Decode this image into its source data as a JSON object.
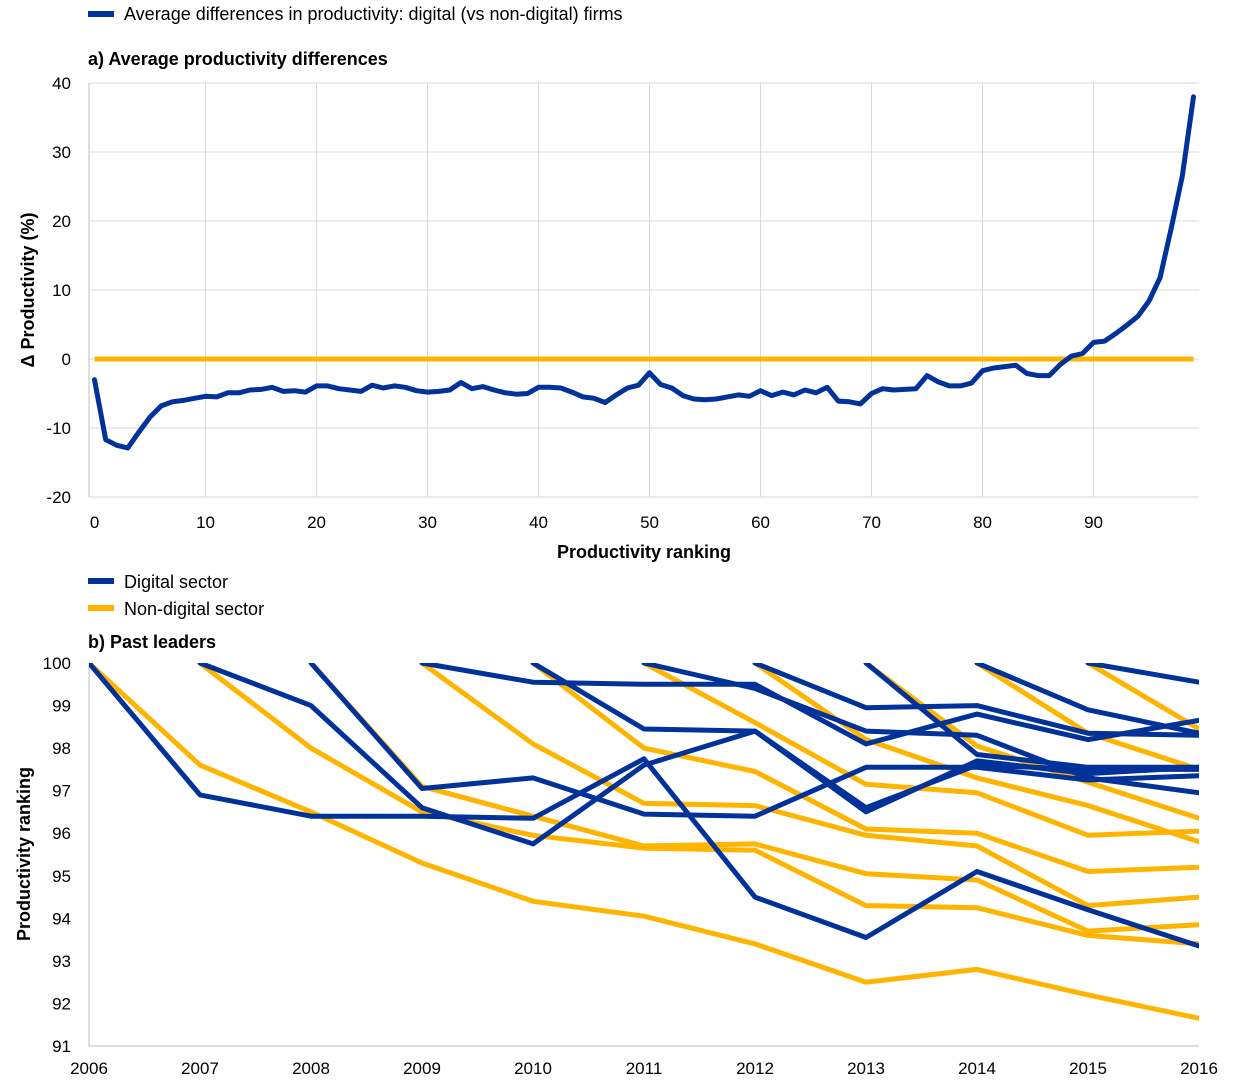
{
  "colors": {
    "digital": "#003299",
    "non_digital": "#FFB400",
    "grid": "#d9d9d9",
    "axis": "#bfbfbf"
  },
  "chart_data": [
    {
      "id": "a",
      "type": "line",
      "title": "a) Average productivity differences",
      "xlabel": "Productivity ranking",
      "ylabel": "Δ Productivity (%)",
      "xlim": [
        0,
        99
      ],
      "ylim": [
        -20,
        40
      ],
      "xticks": [
        0,
        10,
        20,
        30,
        40,
        50,
        60,
        70,
        80,
        90
      ],
      "yticks": [
        -20,
        -10,
        0,
        10,
        20,
        30,
        40
      ],
      "grid": true,
      "legend_position": "top-left",
      "legend": [
        {
          "label": "Average differences in productivity: digital (vs non-digital) firms",
          "color": "#003299"
        }
      ],
      "reference_line": {
        "y": 0,
        "color": "#FFB400"
      },
      "series": [
        {
          "name": "Average differences in productivity: digital (vs non-digital) firms",
          "color": "#003299",
          "x": [
            0,
            1,
            2,
            3,
            4,
            5,
            6,
            7,
            8,
            9,
            10,
            11,
            12,
            13,
            14,
            15,
            16,
            17,
            18,
            19,
            20,
            21,
            22,
            23,
            24,
            25,
            26,
            27,
            28,
            29,
            30,
            31,
            32,
            33,
            34,
            35,
            36,
            37,
            38,
            39,
            40,
            41,
            42,
            43,
            44,
            45,
            46,
            47,
            48,
            49,
            50,
            51,
            52,
            53,
            54,
            55,
            56,
            57,
            58,
            59,
            60,
            61,
            62,
            63,
            64,
            65,
            66,
            67,
            68,
            69,
            70,
            71,
            72,
            73,
            74,
            75,
            76,
            77,
            78,
            79,
            80,
            81,
            82,
            83,
            84,
            85,
            86,
            87,
            88,
            89,
            90,
            91,
            92,
            93,
            94,
            95,
            96,
            97,
            98,
            99
          ],
          "values": [
            -3,
            -11.7,
            -12.5,
            -12.9,
            -10.6,
            -8.4,
            -6.8,
            -6.2,
            -6,
            -5.7,
            -5.4,
            -5.5,
            -4.9,
            -4.9,
            -4.5,
            -4.4,
            -4.1,
            -4.7,
            -4.6,
            -4.8,
            -3.9,
            -3.9,
            -4.3,
            -4.5,
            -4.7,
            -3.8,
            -4.2,
            -3.9,
            -4.1,
            -4.6,
            -4.8,
            -4.7,
            -4.5,
            -3.4,
            -4.3,
            -4,
            -4.5,
            -4.9,
            -5.1,
            -5,
            -4.1,
            -4.1,
            -4.2,
            -4.8,
            -5.5,
            -5.7,
            -6.3,
            -5.2,
            -4.2,
            -3.8,
            -2,
            -3.7,
            -4.2,
            -5.3,
            -5.8,
            -5.9,
            -5.8,
            -5.5,
            -5.2,
            -5.4,
            -4.6,
            -5.3,
            -4.8,
            -5.2,
            -4.5,
            -4.9,
            -4.1,
            -6.1,
            -6.2,
            -6.5,
            -5,
            -4.3,
            -4.5,
            -4.4,
            -4.3,
            -2.4,
            -3.3,
            -3.9,
            -3.9,
            -3.5,
            -1.7,
            -1.3,
            -1.1,
            -0.9,
            -2.1,
            -2.4,
            -2.4,
            -0.8,
            0.4,
            0.8,
            2.4,
            2.6,
            3.7,
            4.9,
            6.2,
            8.4,
            11.8,
            19,
            26.5,
            38
          ]
        }
      ]
    },
    {
      "id": "b",
      "type": "line",
      "title": "b) Past leaders",
      "xlabel": "",
      "ylabel": "Productivity ranking",
      "xlim": [
        2006,
        2016
      ],
      "ylim": [
        91,
        100
      ],
      "xticks": [
        2006,
        2007,
        2008,
        2009,
        2010,
        2011,
        2012,
        2013,
        2014,
        2015,
        2016
      ],
      "yticks": [
        91,
        92,
        93,
        94,
        95,
        96,
        97,
        98,
        99,
        100
      ],
      "grid": false,
      "legend_position": "top-left",
      "legend": [
        {
          "label": "Digital sector",
          "color": "#003299"
        },
        {
          "label": "Non-digital sector",
          "color": "#FFB400"
        }
      ],
      "series_groups": [
        {
          "group": "Non-digital sector",
          "color": "#FFB400",
          "lines": [
            {
              "x": [
                2006,
                2007,
                2008,
                2009,
                2010,
                2011,
                2012,
                2013,
                2014,
                2015,
                2016
              ],
              "values": [
                100,
                97.6,
                96.5,
                95.3,
                94.4,
                94.05,
                93.4,
                92.5,
                92.8,
                92.2,
                91.65
              ]
            },
            {
              "x": [
                2007,
                2008,
                2009,
                2010,
                2011,
                2012,
                2013,
                2014,
                2015,
                2016
              ],
              "values": [
                100,
                98,
                96.5,
                95.95,
                95.65,
                95.6,
                94.3,
                94.25,
                93.6,
                93.4
              ]
            },
            {
              "x": [
                2008,
                2009,
                2010,
                2011,
                2012,
                2013,
                2014,
                2015,
                2016
              ],
              "values": [
                100,
                97.1,
                96.4,
                95.7,
                95.75,
                95.05,
                94.9,
                93.7,
                93.85
              ]
            },
            {
              "x": [
                2009,
                2010,
                2011,
                2012,
                2013,
                2014,
                2015,
                2016
              ],
              "values": [
                100,
                98.1,
                96.7,
                96.65,
                95.95,
                95.7,
                94.3,
                94.5
              ]
            },
            {
              "x": [
                2010,
                2011,
                2012,
                2013,
                2014,
                2015,
                2016
              ],
              "values": [
                100,
                98,
                97.45,
                96.1,
                96,
                95.1,
                95.2
              ]
            },
            {
              "x": [
                2011,
                2012,
                2013,
                2014,
                2015,
                2016
              ],
              "values": [
                100,
                98.6,
                97.15,
                96.95,
                95.95,
                96.05
              ]
            },
            {
              "x": [
                2012,
                2013,
                2014,
                2015,
                2016
              ],
              "values": [
                100,
                98.2,
                97.3,
                96.65,
                95.8
              ]
            },
            {
              "x": [
                2013,
                2014,
                2015,
                2016
              ],
              "values": [
                100,
                98.05,
                97.2,
                96.35
              ]
            },
            {
              "x": [
                2014,
                2015,
                2016
              ],
              "values": [
                100,
                98.35,
                97.5
              ]
            },
            {
              "x": [
                2015,
                2016
              ],
              "values": [
                100,
                98.45
              ]
            }
          ]
        },
        {
          "group": "Digital sector",
          "color": "#003299",
          "lines": [
            {
              "x": [
                2006,
                2007,
                2008,
                2009,
                2010,
                2011,
                2012,
                2013,
                2014,
                2015,
                2016
              ],
              "values": [
                100,
                96.9,
                96.4,
                96.4,
                96.35,
                97.75,
                94.5,
                93.55,
                95.1,
                94.2,
                93.35
              ]
            },
            {
              "x": [
                2007,
                2008,
                2009,
                2010,
                2011,
                2012,
                2013,
                2014,
                2015,
                2016
              ],
              "values": [
                100,
                99,
                96.6,
                95.75,
                97.6,
                98.4,
                96.5,
                97.7,
                97.4,
                97.55
              ]
            },
            {
              "x": [
                2008,
                2009,
                2010,
                2011,
                2012,
                2013,
                2014,
                2015,
                2016
              ],
              "values": [
                100,
                97.05,
                97.3,
                96.45,
                96.4,
                97.55,
                97.55,
                97.25,
                97.35
              ]
            },
            {
              "x": [
                2009,
                2010,
                2011,
                2012,
                2013,
                2014,
                2015,
                2016
              ],
              "values": [
                100,
                99.55,
                99.5,
                99.5,
                98.1,
                98.8,
                98.2,
                98.65
              ]
            },
            {
              "x": [
                2010,
                2011,
                2012,
                2013,
                2014,
                2015,
                2016
              ],
              "values": [
                100,
                98.45,
                98.4,
                96.6,
                97.6,
                97.5,
                97.5
              ]
            },
            {
              "x": [
                2011,
                2012,
                2013,
                2014,
                2015,
                2016
              ],
              "values": [
                100,
                99.4,
                98.4,
                98.3,
                97.3,
                96.95
              ]
            },
            {
              "x": [
                2012,
                2013,
                2014,
                2015,
                2016
              ],
              "values": [
                100,
                98.95,
                99,
                98.35,
                98.3
              ]
            },
            {
              "x": [
                2013,
                2014,
                2015,
                2016
              ],
              "values": [
                100,
                97.85,
                97.55,
                97.55
              ]
            },
            {
              "x": [
                2014,
                2015,
                2016
              ],
              "values": [
                100,
                98.9,
                98.35
              ]
            },
            {
              "x": [
                2015,
                2016
              ],
              "values": [
                100,
                99.55
              ]
            }
          ]
        }
      ]
    }
  ]
}
